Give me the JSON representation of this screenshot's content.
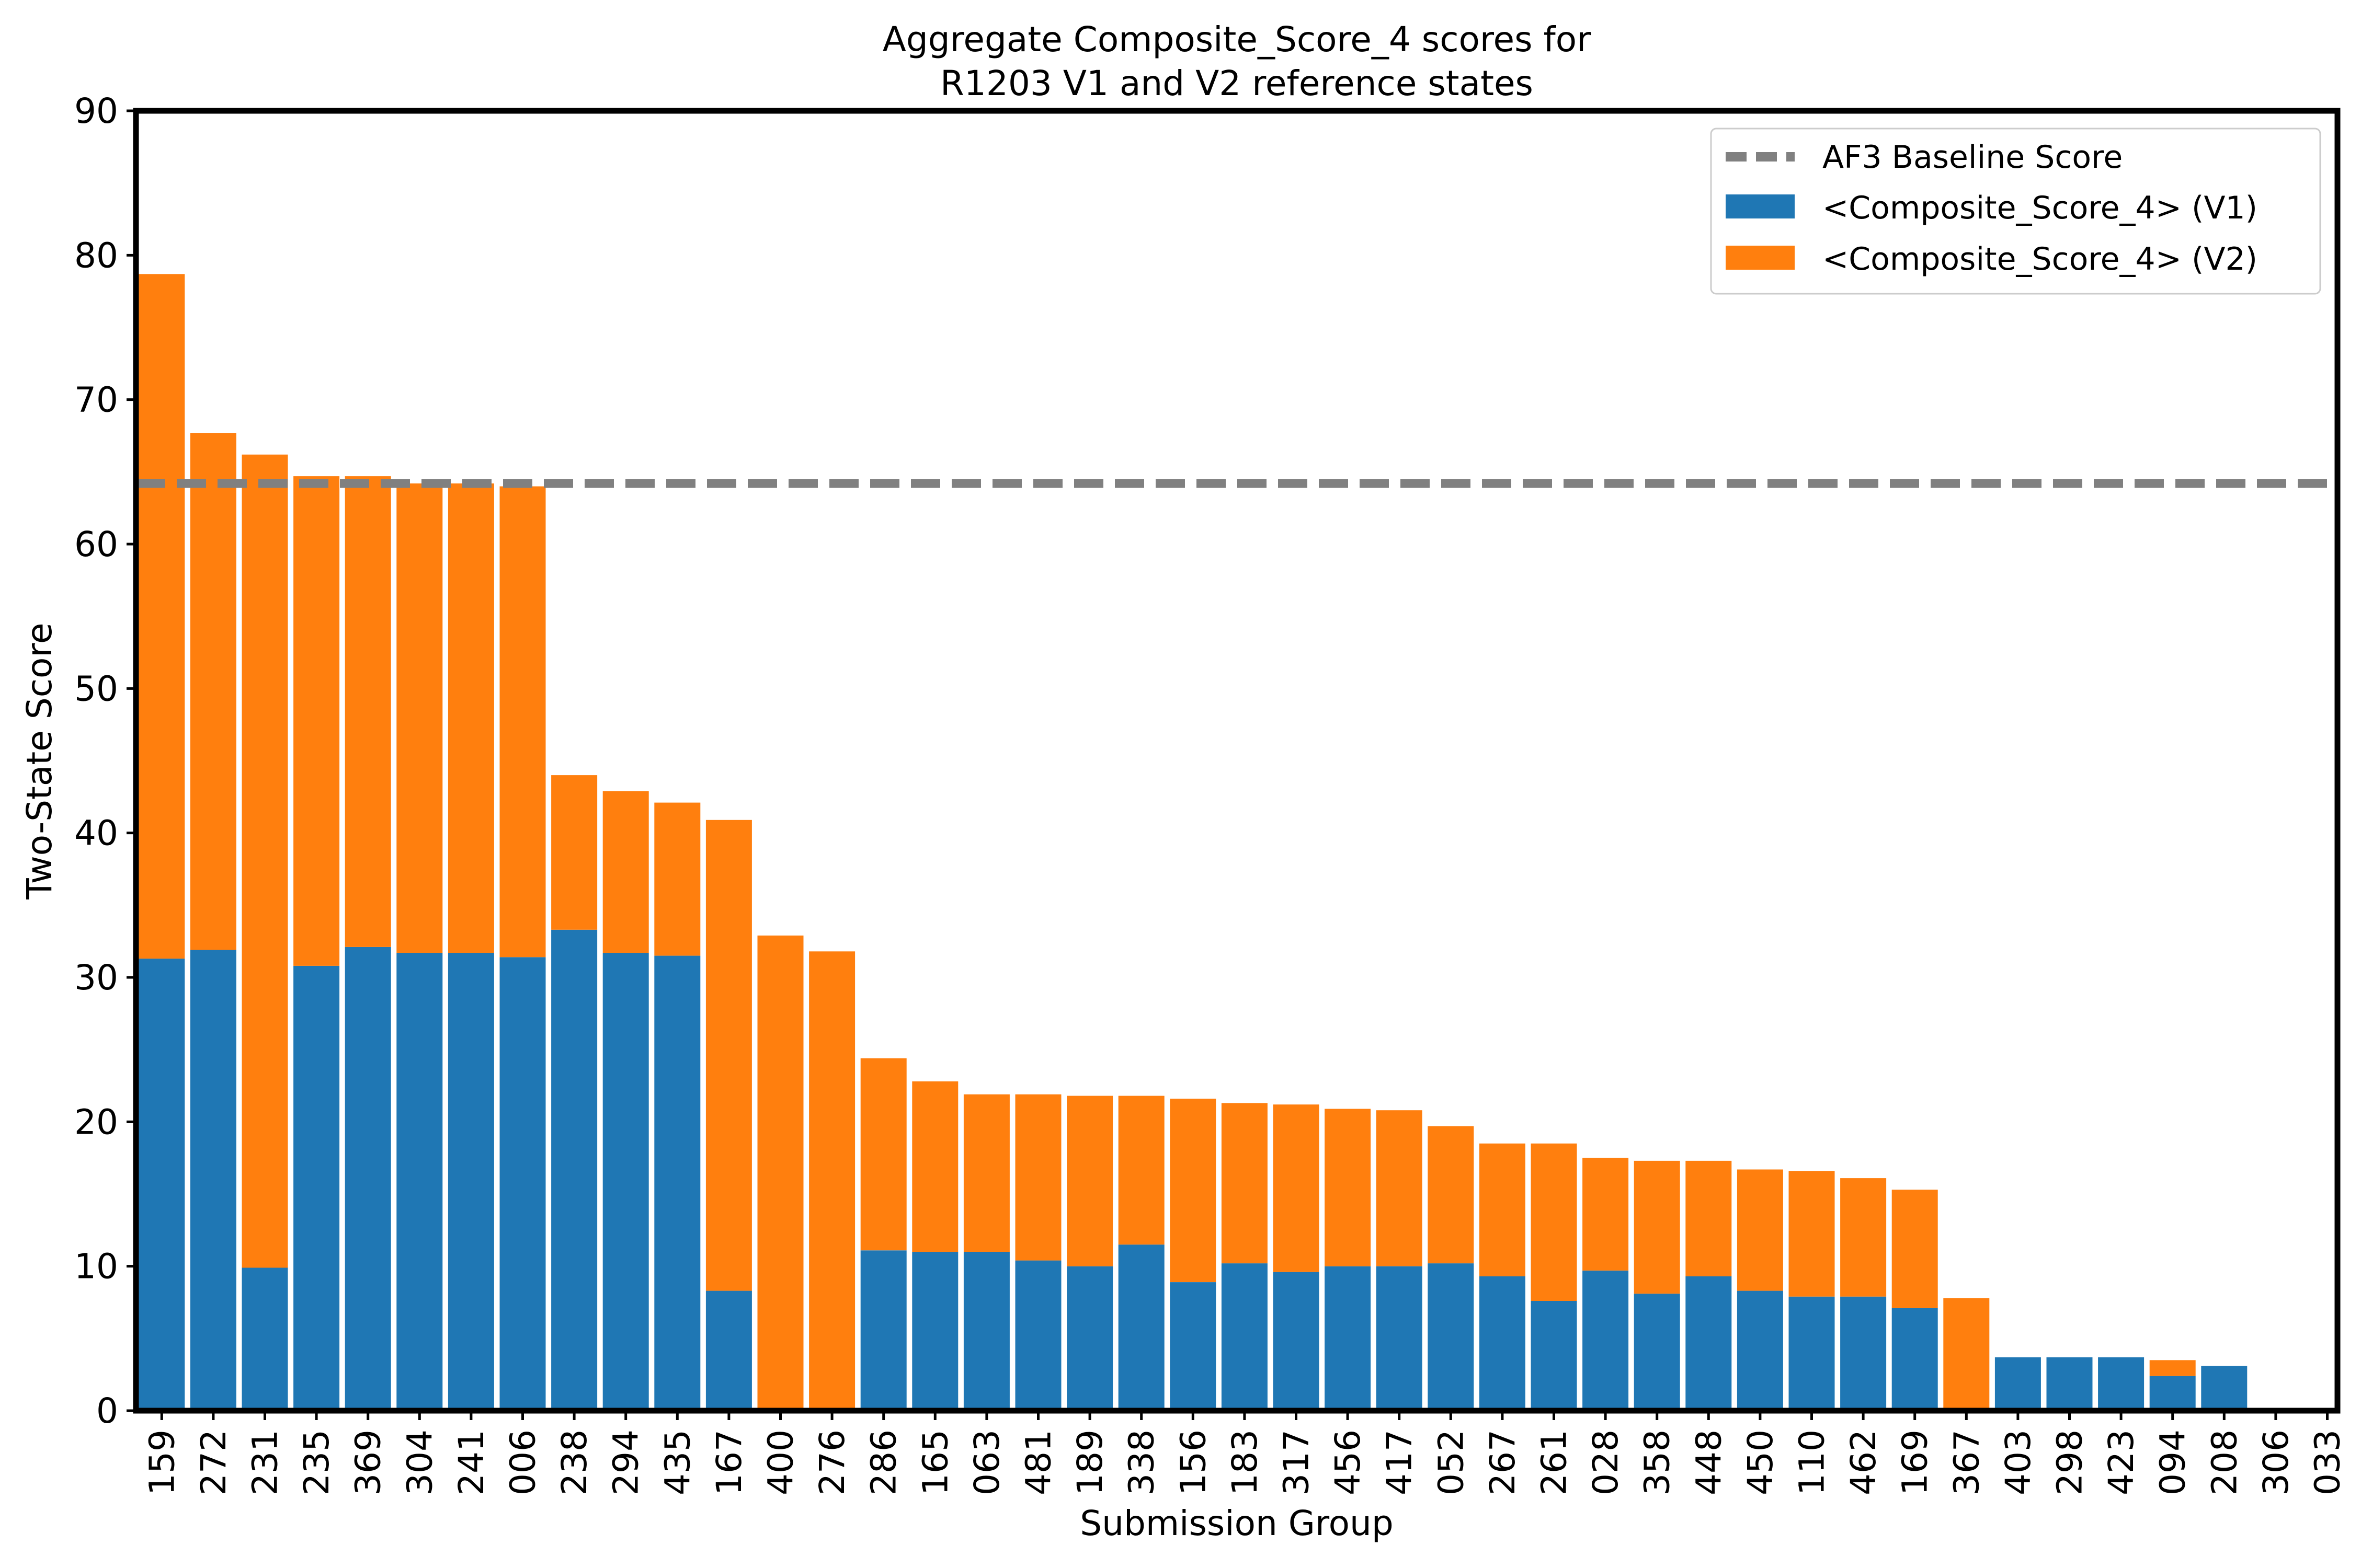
{
  "chart_data": {
    "type": "bar",
    "stacked": true,
    "title": [
      "Aggregate Composite_Score_4 scores for",
      "R1203 V1 and V2 reference states"
    ],
    "xlabel": "Submission Group",
    "ylabel": "Two-State Score",
    "ylim": [
      0,
      90
    ],
    "yticks": [
      0,
      10,
      20,
      30,
      40,
      50,
      60,
      70,
      80,
      90
    ],
    "grid": false,
    "legend_position": "top-right",
    "baseline": {
      "name": "AF3 Baseline Score",
      "value": 64.2,
      "color": "#808080",
      "style": "dashed"
    },
    "categories": [
      "159",
      "272",
      "231",
      "235",
      "369",
      "304",
      "241",
      "006",
      "238",
      "294",
      "435",
      "167",
      "400",
      "276",
      "286",
      "165",
      "063",
      "481",
      "189",
      "338",
      "156",
      "183",
      "317",
      "456",
      "417",
      "052",
      "267",
      "261",
      "028",
      "358",
      "448",
      "450",
      "110",
      "462",
      "169",
      "367",
      "403",
      "298",
      "423",
      "094",
      "208",
      "306",
      "033"
    ],
    "series": [
      {
        "name": "<Composite_Score_4> (V1)",
        "color": "#1f77b4",
        "values": [
          31.3,
          31.9,
          9.9,
          30.8,
          32.1,
          31.7,
          31.7,
          31.4,
          33.3,
          31.7,
          31.5,
          8.3,
          0,
          0,
          11.1,
          11.0,
          11.0,
          10.4,
          10.0,
          11.5,
          8.9,
          10.2,
          9.6,
          10.0,
          10.0,
          10.2,
          9.3,
          7.6,
          9.7,
          8.1,
          9.3,
          8.3,
          7.9,
          7.9,
          7.1,
          0,
          3.7,
          3.7,
          3.7,
          2.4,
          3.1,
          0,
          0
        ]
      },
      {
        "name": "<Composite_Score_4> (V2)",
        "color": "#ff7f0e",
        "values": [
          47.4,
          35.8,
          56.3,
          33.9,
          32.6,
          32.5,
          32.5,
          32.6,
          10.7,
          11.2,
          10.6,
          32.6,
          32.9,
          31.8,
          13.3,
          11.8,
          10.9,
          11.5,
          11.8,
          10.3,
          12.7,
          11.1,
          11.6,
          10.9,
          10.8,
          9.5,
          9.2,
          10.9,
          7.8,
          9.2,
          8.0,
          8.4,
          8.7,
          8.2,
          8.2,
          7.8,
          0,
          0,
          0,
          1.1,
          0,
          0,
          0
        ]
      }
    ]
  }
}
